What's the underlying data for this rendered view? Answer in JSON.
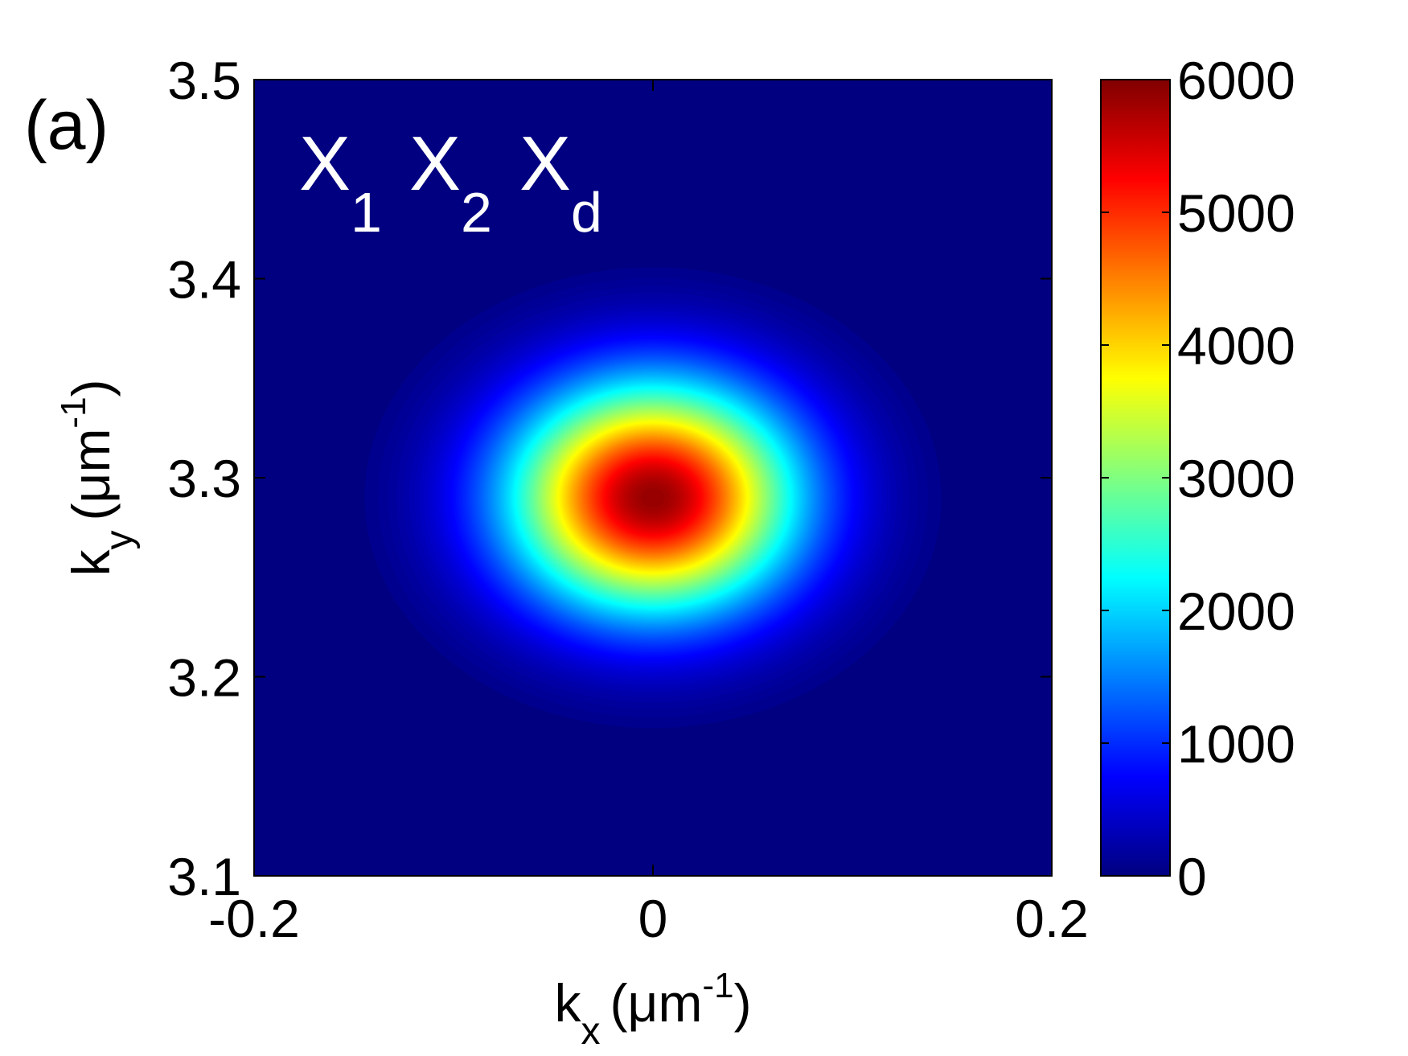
{
  "panel_label": "(a)",
  "chart_data": {
    "type": "heatmap",
    "title": "",
    "annotation": {
      "main": [
        "X",
        "X",
        "X"
      ],
      "subscripts": [
        "1",
        "2",
        "d"
      ]
    },
    "xlabel": {
      "main": "k",
      "sub": "x",
      "unit_prefix": "(μm",
      "unit_sup": "-1",
      "unit_suffix": ")"
    },
    "ylabel": {
      "main": "k",
      "sub": "y",
      "unit_prefix": "(μm",
      "unit_sup": "-1",
      "unit_suffix": ")"
    },
    "xlim": [
      -0.2,
      0.2
    ],
    "ylim": [
      3.1,
      3.5
    ],
    "xticks": [
      -0.2,
      0,
      0.2
    ],
    "xtick_labels": [
      "-0.2",
      "0",
      "0.2"
    ],
    "yticks": [
      3.1,
      3.2,
      3.3,
      3.4,
      3.5
    ],
    "ytick_labels": [
      "3.1",
      "3.2",
      "3.3",
      "3.4",
      "3.5"
    ],
    "colorbar": {
      "colormap": "jet",
      "range": [
        0,
        6000
      ],
      "ticks": [
        0,
        1000,
        2000,
        3000,
        4000,
        5000,
        6000
      ],
      "tick_labels": [
        "0",
        "1000",
        "2000",
        "3000",
        "4000",
        "5000",
        "6000"
      ]
    },
    "peak": {
      "x": 0.0,
      "y": 3.29,
      "value": 5900,
      "sigma_x": 0.05,
      "sigma_y": 0.04
    },
    "grid": false,
    "colors": {
      "background": "#00008f",
      "peak": "#800000"
    }
  }
}
